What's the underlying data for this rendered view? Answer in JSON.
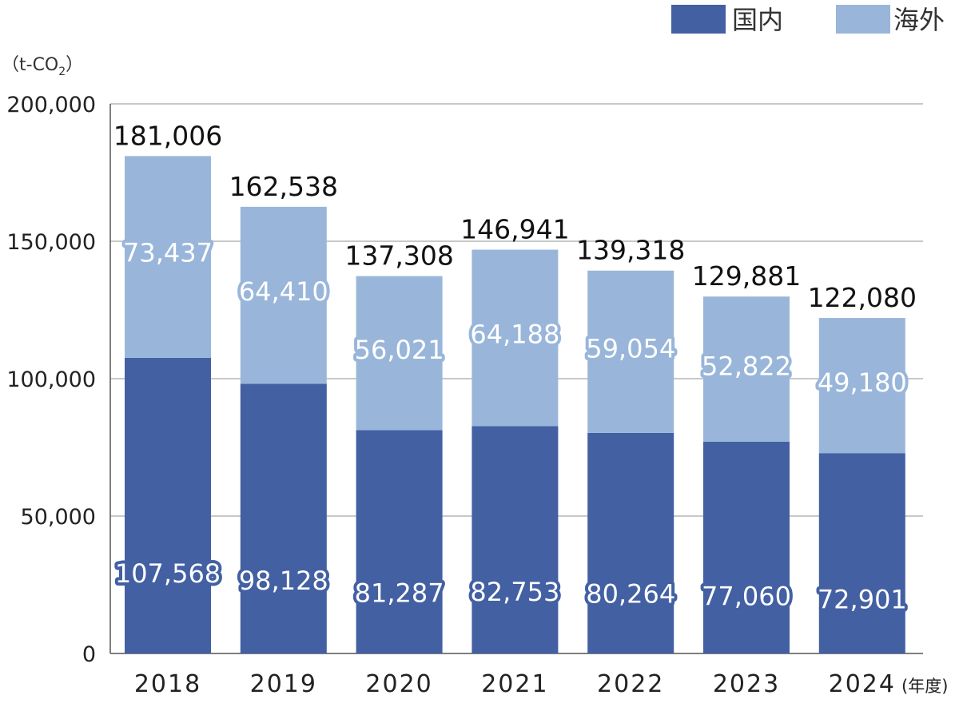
{
  "chart_data": {
    "type": "bar",
    "stacked": true,
    "unit_label_main": "（t-CO",
    "unit_label_sub": "2",
    "unit_label_end": "）",
    "x_unit_label": "(年度)",
    "categories": [
      "2018",
      "2019",
      "2020",
      "2021",
      "2022",
      "2023",
      "2024"
    ],
    "series": [
      {
        "name": "国内",
        "color": "#4360a3",
        "values": [
          107568,
          98128,
          81287,
          82753,
          80264,
          77060,
          72901
        ],
        "labels": [
          "107,568",
          "98,128",
          "81,287",
          "82,753",
          "80,264",
          "77,060",
          "72,901"
        ]
      },
      {
        "name": "海外",
        "color": "#99b6da",
        "values": [
          73437,
          64410,
          56021,
          64188,
          59054,
          52822,
          49180
        ],
        "labels": [
          "73,437",
          "64,410",
          "56,021",
          "64,188",
          "59,054",
          "52,822",
          "49,180"
        ]
      }
    ],
    "totals": [
      181006,
      162538,
      137308,
      146941,
      139318,
      129881,
      122080
    ],
    "total_labels": [
      "181,006",
      "162,538",
      "137,308",
      "146,941",
      "139,318",
      "129,881",
      "122,080"
    ],
    "ylim": [
      0,
      200000
    ],
    "yticks": [
      0,
      50000,
      100000,
      150000,
      200000
    ],
    "ytick_labels": [
      "0",
      "50,000",
      "100,000",
      "150,000",
      "200,000"
    ],
    "grid": true,
    "legend_position": "top-right"
  }
}
